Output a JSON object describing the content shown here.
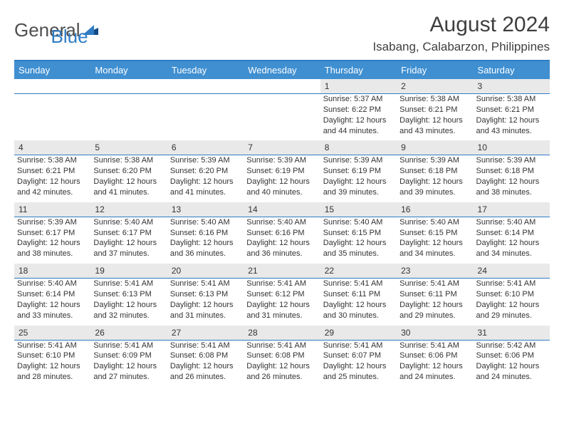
{
  "logo": {
    "word1": "General",
    "word2": "Blue"
  },
  "title": {
    "month": "August 2024",
    "location": "Isabang, Calabarzon, Philippines"
  },
  "colors": {
    "header_bg": "#3f8fd1",
    "header_text": "#ffffff",
    "border": "#2f7cc4",
    "daynum_bg": "#e9e9e9",
    "text": "#333333",
    "logo_gray": "#4f4f4f",
    "logo_blue": "#2f7cc4",
    "page_bg": "#ffffff"
  },
  "day_names": [
    "Sunday",
    "Monday",
    "Tuesday",
    "Wednesday",
    "Thursday",
    "Friday",
    "Saturday"
  ],
  "labels": {
    "sunrise": "Sunrise:",
    "sunset": "Sunset:",
    "daylight": "Daylight:"
  },
  "weeks": [
    [
      null,
      null,
      null,
      null,
      {
        "n": "1",
        "sr": "5:37 AM",
        "ss": "6:22 PM",
        "d1": "12 hours",
        "d2": "and 44 minutes."
      },
      {
        "n": "2",
        "sr": "5:38 AM",
        "ss": "6:21 PM",
        "d1": "12 hours",
        "d2": "and 43 minutes."
      },
      {
        "n": "3",
        "sr": "5:38 AM",
        "ss": "6:21 PM",
        "d1": "12 hours",
        "d2": "and 43 minutes."
      }
    ],
    [
      {
        "n": "4",
        "sr": "5:38 AM",
        "ss": "6:21 PM",
        "d1": "12 hours",
        "d2": "and 42 minutes."
      },
      {
        "n": "5",
        "sr": "5:38 AM",
        "ss": "6:20 PM",
        "d1": "12 hours",
        "d2": "and 41 minutes."
      },
      {
        "n": "6",
        "sr": "5:39 AM",
        "ss": "6:20 PM",
        "d1": "12 hours",
        "d2": "and 41 minutes."
      },
      {
        "n": "7",
        "sr": "5:39 AM",
        "ss": "6:19 PM",
        "d1": "12 hours",
        "d2": "and 40 minutes."
      },
      {
        "n": "8",
        "sr": "5:39 AM",
        "ss": "6:19 PM",
        "d1": "12 hours",
        "d2": "and 39 minutes."
      },
      {
        "n": "9",
        "sr": "5:39 AM",
        "ss": "6:18 PM",
        "d1": "12 hours",
        "d2": "and 39 minutes."
      },
      {
        "n": "10",
        "sr": "5:39 AM",
        "ss": "6:18 PM",
        "d1": "12 hours",
        "d2": "and 38 minutes."
      }
    ],
    [
      {
        "n": "11",
        "sr": "5:39 AM",
        "ss": "6:17 PM",
        "d1": "12 hours",
        "d2": "and 38 minutes."
      },
      {
        "n": "12",
        "sr": "5:40 AM",
        "ss": "6:17 PM",
        "d1": "12 hours",
        "d2": "and 37 minutes."
      },
      {
        "n": "13",
        "sr": "5:40 AM",
        "ss": "6:16 PM",
        "d1": "12 hours",
        "d2": "and 36 minutes."
      },
      {
        "n": "14",
        "sr": "5:40 AM",
        "ss": "6:16 PM",
        "d1": "12 hours",
        "d2": "and 36 minutes."
      },
      {
        "n": "15",
        "sr": "5:40 AM",
        "ss": "6:15 PM",
        "d1": "12 hours",
        "d2": "and 35 minutes."
      },
      {
        "n": "16",
        "sr": "5:40 AM",
        "ss": "6:15 PM",
        "d1": "12 hours",
        "d2": "and 34 minutes."
      },
      {
        "n": "17",
        "sr": "5:40 AM",
        "ss": "6:14 PM",
        "d1": "12 hours",
        "d2": "and 34 minutes."
      }
    ],
    [
      {
        "n": "18",
        "sr": "5:40 AM",
        "ss": "6:14 PM",
        "d1": "12 hours",
        "d2": "and 33 minutes."
      },
      {
        "n": "19",
        "sr": "5:41 AM",
        "ss": "6:13 PM",
        "d1": "12 hours",
        "d2": "and 32 minutes."
      },
      {
        "n": "20",
        "sr": "5:41 AM",
        "ss": "6:13 PM",
        "d1": "12 hours",
        "d2": "and 31 minutes."
      },
      {
        "n": "21",
        "sr": "5:41 AM",
        "ss": "6:12 PM",
        "d1": "12 hours",
        "d2": "and 31 minutes."
      },
      {
        "n": "22",
        "sr": "5:41 AM",
        "ss": "6:11 PM",
        "d1": "12 hours",
        "d2": "and 30 minutes."
      },
      {
        "n": "23",
        "sr": "5:41 AM",
        "ss": "6:11 PM",
        "d1": "12 hours",
        "d2": "and 29 minutes."
      },
      {
        "n": "24",
        "sr": "5:41 AM",
        "ss": "6:10 PM",
        "d1": "12 hours",
        "d2": "and 29 minutes."
      }
    ],
    [
      {
        "n": "25",
        "sr": "5:41 AM",
        "ss": "6:10 PM",
        "d1": "12 hours",
        "d2": "and 28 minutes."
      },
      {
        "n": "26",
        "sr": "5:41 AM",
        "ss": "6:09 PM",
        "d1": "12 hours",
        "d2": "and 27 minutes."
      },
      {
        "n": "27",
        "sr": "5:41 AM",
        "ss": "6:08 PM",
        "d1": "12 hours",
        "d2": "and 26 minutes."
      },
      {
        "n": "28",
        "sr": "5:41 AM",
        "ss": "6:08 PM",
        "d1": "12 hours",
        "d2": "and 26 minutes."
      },
      {
        "n": "29",
        "sr": "5:41 AM",
        "ss": "6:07 PM",
        "d1": "12 hours",
        "d2": "and 25 minutes."
      },
      {
        "n": "30",
        "sr": "5:41 AM",
        "ss": "6:06 PM",
        "d1": "12 hours",
        "d2": "and 24 minutes."
      },
      {
        "n": "31",
        "sr": "5:42 AM",
        "ss": "6:06 PM",
        "d1": "12 hours",
        "d2": "and 24 minutes."
      }
    ]
  ]
}
